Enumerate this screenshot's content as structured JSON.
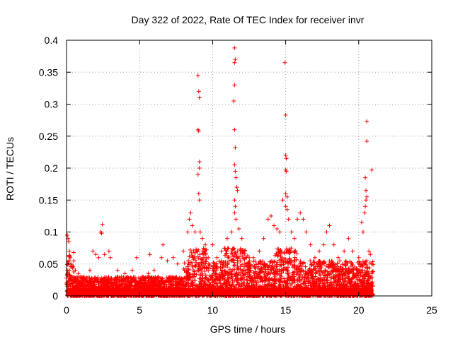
{
  "chart_data": {
    "type": "scatter",
    "title": "Day 322 of 2022, Rate Of TEC Index for receiver invr",
    "xlabel": "GPS time / hours",
    "ylabel": "ROTI / TECUs",
    "xlim": [
      0,
      25
    ],
    "ylim": [
      0,
      0.4
    ],
    "xticks": [
      0,
      5,
      10,
      15,
      20,
      25
    ],
    "xtick_labels": [
      "0",
      "5",
      "10",
      "15",
      "20",
      "25"
    ],
    "yticks": [
      0,
      0.05,
      0.1,
      0.15,
      0.2,
      0.25,
      0.3,
      0.35,
      0.4
    ],
    "ytick_labels": [
      "0",
      "0.05",
      "0.1",
      "0.15",
      "0.2",
      "0.25",
      "0.3",
      "0.35",
      "0.4"
    ],
    "grid": true,
    "marker": "+",
    "marker_color": "#ff0000",
    "series": [
      {
        "name": "ROTI",
        "points": [
          [
            0.05,
            0.095
          ],
          [
            0.1,
            0.09
          ],
          [
            0.15,
            0.085
          ],
          [
            0.2,
            0.07
          ],
          [
            0.25,
            0.06
          ],
          [
            0.3,
            0.05
          ],
          [
            0.4,
            0.045
          ],
          [
            0.6,
            0.04
          ],
          [
            0.8,
            0.035
          ],
          [
            1.2,
            0.03
          ],
          [
            1.6,
            0.04
          ],
          [
            1.8,
            0.07
          ],
          [
            2.0,
            0.065
          ],
          [
            2.2,
            0.06
          ],
          [
            2.35,
            0.1
          ],
          [
            2.4,
            0.098
          ],
          [
            2.45,
            0.112
          ],
          [
            2.6,
            0.065
          ],
          [
            2.9,
            0.07
          ],
          [
            3.0,
            0.06
          ],
          [
            3.5,
            0.04
          ],
          [
            4.0,
            0.035
          ],
          [
            4.5,
            0.04
          ],
          [
            4.8,
            0.06
          ],
          [
            5.2,
            0.03
          ],
          [
            5.6,
            0.035
          ],
          [
            5.7,
            0.065
          ],
          [
            6.0,
            0.04
          ],
          [
            6.5,
            0.06
          ],
          [
            6.6,
            0.08
          ],
          [
            6.9,
            0.055
          ],
          [
            7.3,
            0.06
          ],
          [
            7.6,
            0.05
          ],
          [
            8.0,
            0.07
          ],
          [
            8.3,
            0.1
          ],
          [
            8.4,
            0.12
          ],
          [
            8.5,
            0.13
          ],
          [
            8.6,
            0.11
          ],
          [
            8.8,
            0.1
          ],
          [
            9.0,
            0.345
          ],
          [
            9.05,
            0.32
          ],
          [
            9.1,
            0.31
          ],
          [
            9.0,
            0.26
          ],
          [
            9.05,
            0.258
          ],
          [
            9.1,
            0.21
          ],
          [
            9.0,
            0.19
          ],
          [
            9.1,
            0.2
          ],
          [
            9.05,
            0.16
          ],
          [
            9.1,
            0.15
          ],
          [
            9.15,
            0.1
          ],
          [
            9.3,
            0.09
          ],
          [
            9.5,
            0.08
          ],
          [
            9.7,
            0.06
          ],
          [
            10.0,
            0.08
          ],
          [
            10.3,
            0.06
          ],
          [
            10.6,
            0.07
          ],
          [
            11.0,
            0.09
          ],
          [
            11.3,
            0.1
          ],
          [
            11.5,
            0.388
          ],
          [
            11.55,
            0.37
          ],
          [
            11.5,
            0.365
          ],
          [
            11.5,
            0.33
          ],
          [
            11.45,
            0.305
          ],
          [
            11.5,
            0.26
          ],
          [
            11.55,
            0.232
          ],
          [
            11.5,
            0.205
          ],
          [
            11.55,
            0.195
          ],
          [
            11.6,
            0.185
          ],
          [
            11.65,
            0.17
          ],
          [
            11.7,
            0.165
          ],
          [
            11.5,
            0.15
          ],
          [
            11.55,
            0.14
          ],
          [
            11.5,
            0.13
          ],
          [
            11.6,
            0.12
          ],
          [
            11.8,
            0.105
          ],
          [
            12.0,
            0.09
          ],
          [
            12.2,
            0.07
          ],
          [
            12.5,
            0.06
          ],
          [
            12.8,
            0.06
          ],
          [
            13.2,
            0.07
          ],
          [
            13.5,
            0.09
          ],
          [
            13.8,
            0.12
          ],
          [
            14.0,
            0.125
          ],
          [
            14.2,
            0.11
          ],
          [
            14.4,
            0.105
          ],
          [
            14.6,
            0.1
          ],
          [
            14.8,
            0.15
          ],
          [
            14.95,
            0.365
          ],
          [
            15.0,
            0.283
          ],
          [
            15.0,
            0.22
          ],
          [
            15.05,
            0.215
          ],
          [
            15.0,
            0.197
          ],
          [
            15.05,
            0.195
          ],
          [
            15.0,
            0.16
          ],
          [
            15.1,
            0.155
          ],
          [
            15.0,
            0.14
          ],
          [
            15.1,
            0.135
          ],
          [
            15.2,
            0.12
          ],
          [
            15.4,
            0.1
          ],
          [
            15.6,
            0.09
          ],
          [
            15.8,
            0.12
          ],
          [
            16.0,
            0.13
          ],
          [
            16.2,
            0.12
          ],
          [
            16.4,
            0.1
          ],
          [
            16.7,
            0.08
          ],
          [
            17.0,
            0.06
          ],
          [
            17.3,
            0.07
          ],
          [
            17.6,
            0.08
          ],
          [
            17.8,
            0.1
          ],
          [
            18.0,
            0.11
          ],
          [
            18.3,
            0.08
          ],
          [
            18.6,
            0.06
          ],
          [
            19.0,
            0.07
          ],
          [
            19.3,
            0.09
          ],
          [
            19.6,
            0.07
          ],
          [
            20.0,
            0.06
          ],
          [
            20.2,
            0.115
          ],
          [
            20.3,
            0.1
          ],
          [
            20.4,
            0.13
          ],
          [
            20.45,
            0.185
          ],
          [
            20.5,
            0.165
          ],
          [
            20.55,
            0.155
          ],
          [
            20.5,
            0.15
          ],
          [
            20.45,
            0.14
          ],
          [
            20.55,
            0.273
          ],
          [
            20.55,
            0.242
          ],
          [
            20.9,
            0.197
          ],
          [
            20.7,
            0.07
          ],
          [
            20.8,
            0.065
          ],
          [
            20.9,
            0.05
          ]
        ]
      }
    ]
  }
}
